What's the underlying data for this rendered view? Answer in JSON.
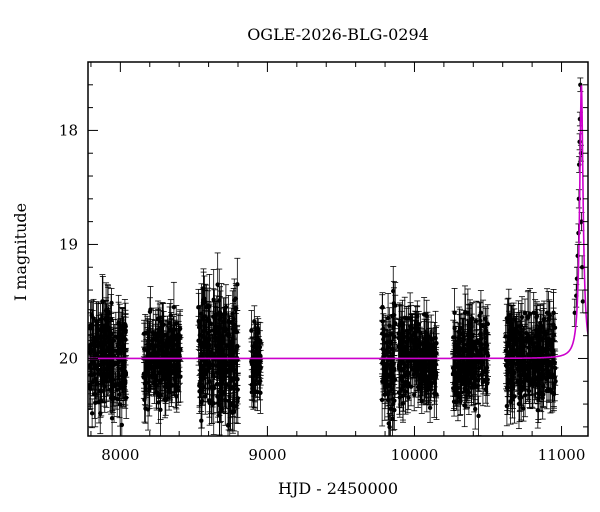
{
  "chart_data": {
    "type": "scatter",
    "title": "OGLE-2026-BLG-0294",
    "xlabel": "HJD - 2450000",
    "ylabel": "I magnitude",
    "xlim": [
      7780,
      11180
    ],
    "ylim": [
      20.68,
      17.4
    ],
    "y_inverted": true,
    "xticks": [
      8000,
      9000,
      10000,
      11000
    ],
    "yticks": [
      18,
      19,
      20
    ],
    "x_tick_labels": [
      "8000",
      "9000",
      "10000",
      "11000"
    ],
    "y_tick_labels": [
      "18",
      "19",
      "20"
    ],
    "grid": false,
    "series": [
      {
        "kind": "points-with-errorbars",
        "color": "#000000",
        "baseline_mag": 20.0,
        "observing_seasons": [
          {
            "x_start": 7790,
            "x_end": 8040,
            "mag_min": 19.5,
            "mag_max": 20.6,
            "typical_error": 0.18
          },
          {
            "x_start": 8160,
            "x_end": 8410,
            "mag_min": 19.55,
            "mag_max": 20.45,
            "typical_error": 0.17
          },
          {
            "x_start": 8530,
            "x_end": 8800,
            "mag_min": 19.35,
            "mag_max": 20.68,
            "typical_error": 0.2
          },
          {
            "x_start": 8890,
            "x_end": 8960,
            "mag_min": 19.6,
            "mag_max": 20.4,
            "typical_error": 0.15
          },
          {
            "x_start": 9780,
            "x_end": 9870,
            "mag_min": 19.35,
            "mag_max": 20.68,
            "typical_error": 0.18
          },
          {
            "x_start": 9890,
            "x_end": 10150,
            "mag_min": 19.6,
            "mag_max": 20.5,
            "typical_error": 0.17
          },
          {
            "x_start": 10260,
            "x_end": 10500,
            "mag_min": 19.6,
            "mag_max": 20.55,
            "typical_error": 0.17
          },
          {
            "x_start": 10620,
            "x_end": 10960,
            "mag_min": 19.6,
            "mag_max": 20.6,
            "typical_error": 0.17
          }
        ],
        "event_points": [
          {
            "x": 11090,
            "y": 19.6,
            "err": 0.12
          },
          {
            "x": 11100,
            "y": 19.45,
            "err": 0.1
          },
          {
            "x": 11105,
            "y": 19.3,
            "err": 0.1
          },
          {
            "x": 11110,
            "y": 19.1,
            "err": 0.1
          },
          {
            "x": 11115,
            "y": 18.9,
            "err": 0.08
          },
          {
            "x": 11118,
            "y": 18.6,
            "err": 0.08
          },
          {
            "x": 11120,
            "y": 18.3,
            "err": 0.07
          },
          {
            "x": 11123,
            "y": 18.1,
            "err": 0.07
          },
          {
            "x": 11125,
            "y": 17.9,
            "err": 0.06
          },
          {
            "x": 11128,
            "y": 17.6,
            "err": 0.06
          },
          {
            "x": 11132,
            "y": 18.2,
            "err": 0.07
          },
          {
            "x": 11136,
            "y": 18.8,
            "err": 0.08
          },
          {
            "x": 11140,
            "y": 19.2,
            "err": 0.1
          },
          {
            "x": 11145,
            "y": 19.5,
            "err": 0.1
          }
        ]
      },
      {
        "kind": "model-curve",
        "color": "#cc00cc",
        "baseline_mag": 20.0,
        "peak_time": 11135,
        "peak_mag": 17.6
      }
    ]
  }
}
